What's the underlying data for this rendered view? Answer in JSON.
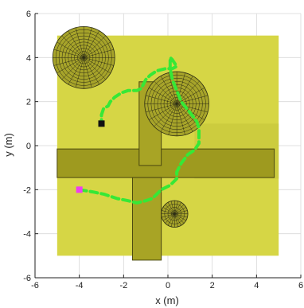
{
  "chart_data": {
    "type": "scatter",
    "title": "",
    "xlabel": "x (m)",
    "ylabel": "y (m)",
    "xlim": [
      -6,
      6
    ],
    "ylim": [
      -6,
      6
    ],
    "xticks": [
      -6,
      -4,
      -2,
      0,
      2,
      4,
      6
    ],
    "yticks": [
      -6,
      -4,
      -2,
      0,
      2,
      4,
      6
    ],
    "grid": true,
    "background_color": "#ffffff",
    "region": {
      "x": [
        -5,
        5
      ],
      "y": [
        -5,
        5
      ],
      "color": "#d6d645"
    },
    "region_shade": {
      "x": [
        1.2,
        5
      ],
      "y": [
        -1.5,
        1.0
      ],
      "color": "#cccc3e"
    },
    "walls": [
      {
        "x": [
          -5.0,
          4.8
        ],
        "y": [
          -1.45,
          -0.15
        ],
        "color": "#9e9a1f"
      },
      {
        "x": [
          -1.3,
          -0.3
        ],
        "y": [
          -0.9,
          2.9
        ],
        "color": "#a8a425"
      },
      {
        "x": [
          -1.6,
          -0.3
        ],
        "y": [
          -5.2,
          -1.45
        ],
        "color": "#a8a425"
      }
    ],
    "obstacles": [
      {
        "center": [
          -3.8,
          4.0
        ],
        "radius": 1.4
      },
      {
        "center": [
          0.4,
          1.9
        ],
        "radius": 1.45
      },
      {
        "center": [
          0.3,
          -3.1
        ],
        "radius": 0.6
      }
    ],
    "obstacle_color": "#a7a42a",
    "obstacle_line_color": "#2a2a14",
    "path": {
      "color": "#36e836",
      "x": [
        -4.0,
        -3.4,
        -2.9,
        -2.3,
        -1.8,
        -1.4,
        -1.0,
        -0.7,
        -0.5,
        -0.3,
        0.1,
        0.4,
        0.4,
        0.6,
        0.9,
        1.2,
        1.4,
        1.4,
        1.4,
        1.3,
        1.0,
        0.6,
        0.4,
        0.2,
        0.1,
        0.1,
        0.1,
        0.2,
        0.4,
        0.2,
        -0.1,
        -0.5,
        -0.8,
        -1.0,
        -1.1,
        -1.2,
        -1.4,
        -1.8,
        -2.1,
        -2.4,
        -2.6,
        -2.7,
        -2.9,
        -3.0,
        -3.0
      ],
      "y": [
        -2.0,
        -2.1,
        -2.2,
        -2.4,
        -2.5,
        -2.6,
        -2.5,
        -2.4,
        -2.2,
        -2.0,
        -1.8,
        -1.5,
        -1.2,
        -0.8,
        -0.4,
        -0.2,
        0.1,
        0.5,
        0.8,
        1.1,
        1.5,
        2.0,
        2.5,
        3.0,
        3.5,
        3.9,
        4.0,
        3.9,
        3.6,
        3.5,
        3.5,
        3.4,
        3.2,
        3.0,
        2.8,
        2.6,
        2.5,
        2.5,
        2.4,
        2.2,
        2.0,
        1.8,
        1.7,
        1.4,
        1.1
      ]
    },
    "markers": [
      {
        "label": "start",
        "x": -4.0,
        "y": -2.0,
        "color": "#ee3fee"
      },
      {
        "label": "goal",
        "x": -3.0,
        "y": 1.0,
        "color": "#111111"
      }
    ]
  }
}
